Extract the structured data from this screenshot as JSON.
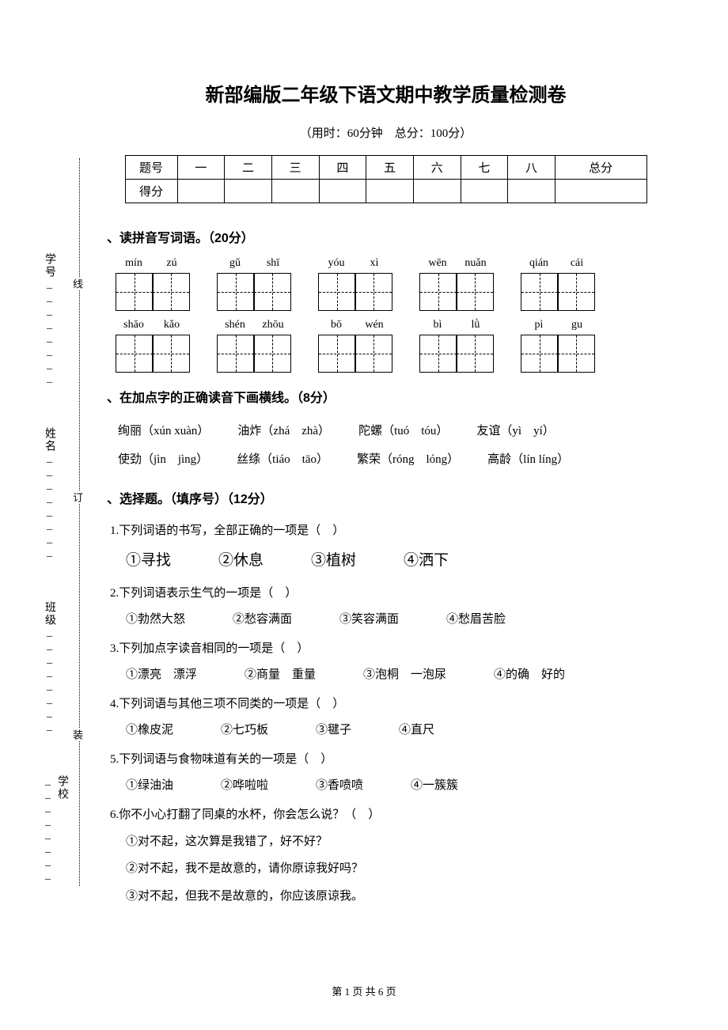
{
  "title": "新部编版二年级下语文期中教学质量检测卷",
  "subtitle": "（用时：60分钟　总分：100分）",
  "scoreTable": {
    "row1": {
      "label": "题号",
      "cols": [
        "一",
        "二",
        "三",
        "四",
        "五",
        "六",
        "七",
        "八",
        "总分"
      ]
    },
    "row2": {
      "label": "得分"
    }
  },
  "binding": {
    "labels": [
      "学校",
      "班级",
      "姓名",
      "学号"
    ],
    "markers": [
      "装",
      "订",
      "线"
    ]
  },
  "section1": {
    "title": "、读拼音写词语。（20分）",
    "row1": [
      [
        "mín",
        "zú"
      ],
      [
        "gǔ",
        "shī"
      ],
      [
        "yóu",
        "xì"
      ],
      [
        "wēn",
        "nuǎn"
      ],
      [
        "qián",
        "cái"
      ]
    ],
    "row2": [
      [
        "shāo",
        "kǎo"
      ],
      [
        "shén",
        "zhōu"
      ],
      [
        "bō",
        "wén"
      ],
      [
        "bì",
        "lǜ"
      ],
      [
        "pì",
        "gu"
      ]
    ]
  },
  "section2": {
    "title": "、在加点字的正确读音下画横线。（8分）",
    "line1": [
      "绚丽（xún  xuàn）",
      "油炸（zhá　zhà）",
      "陀螺（tuó　tóu）",
      "友谊（yì　yí）"
    ],
    "line2": [
      "使劲（jìn　jìng）",
      "丝绦（tiáo　tāo）",
      "繁荣（róng　lóng）",
      "高龄（lín  líng）"
    ]
  },
  "section3": {
    "title": "、选择题。（填序号）（12分）",
    "items": [
      {
        "q": "1.下列词语的书写，全部正确的一项是（　）",
        "choices": [
          "①寻找",
          "②休息",
          "③植树",
          "④洒下"
        ],
        "kai": true
      },
      {
        "q": "2.下列词语表示生气的一项是（　）",
        "choices": [
          "①勃然大怒",
          "②愁容满面",
          "③笑容满面",
          "④愁眉苦脸"
        ]
      },
      {
        "q": "3.下列加点字读音相同的一项是（　）",
        "choices": [
          "①漂亮　漂浮",
          "②商量　重量",
          "③泡桐　一泡尿",
          "④的确　好的"
        ]
      },
      {
        "q": "4.下列词语与其他三项不同类的一项是（　）",
        "choices": [
          "①橡皮泥",
          "②七巧板",
          "③毽子",
          "④直尺"
        ]
      },
      {
        "q": "5.下列词语与食物味道有关的一项是（　）",
        "choices": [
          "①绿油油",
          "②哗啦啦",
          "③香喷喷",
          "④一簇簇"
        ]
      },
      {
        "q": "6.你不小心打翻了同桌的水杯，你会怎么说？（　）",
        "lines": [
          "①对不起，这次算是我错了，好不好？",
          "②对不起，我不是故意的，请你原谅我好吗？",
          "③对不起，但我不是故意的，你应该原谅我。"
        ]
      }
    ]
  },
  "footer": "第 1 页 共 6 页"
}
